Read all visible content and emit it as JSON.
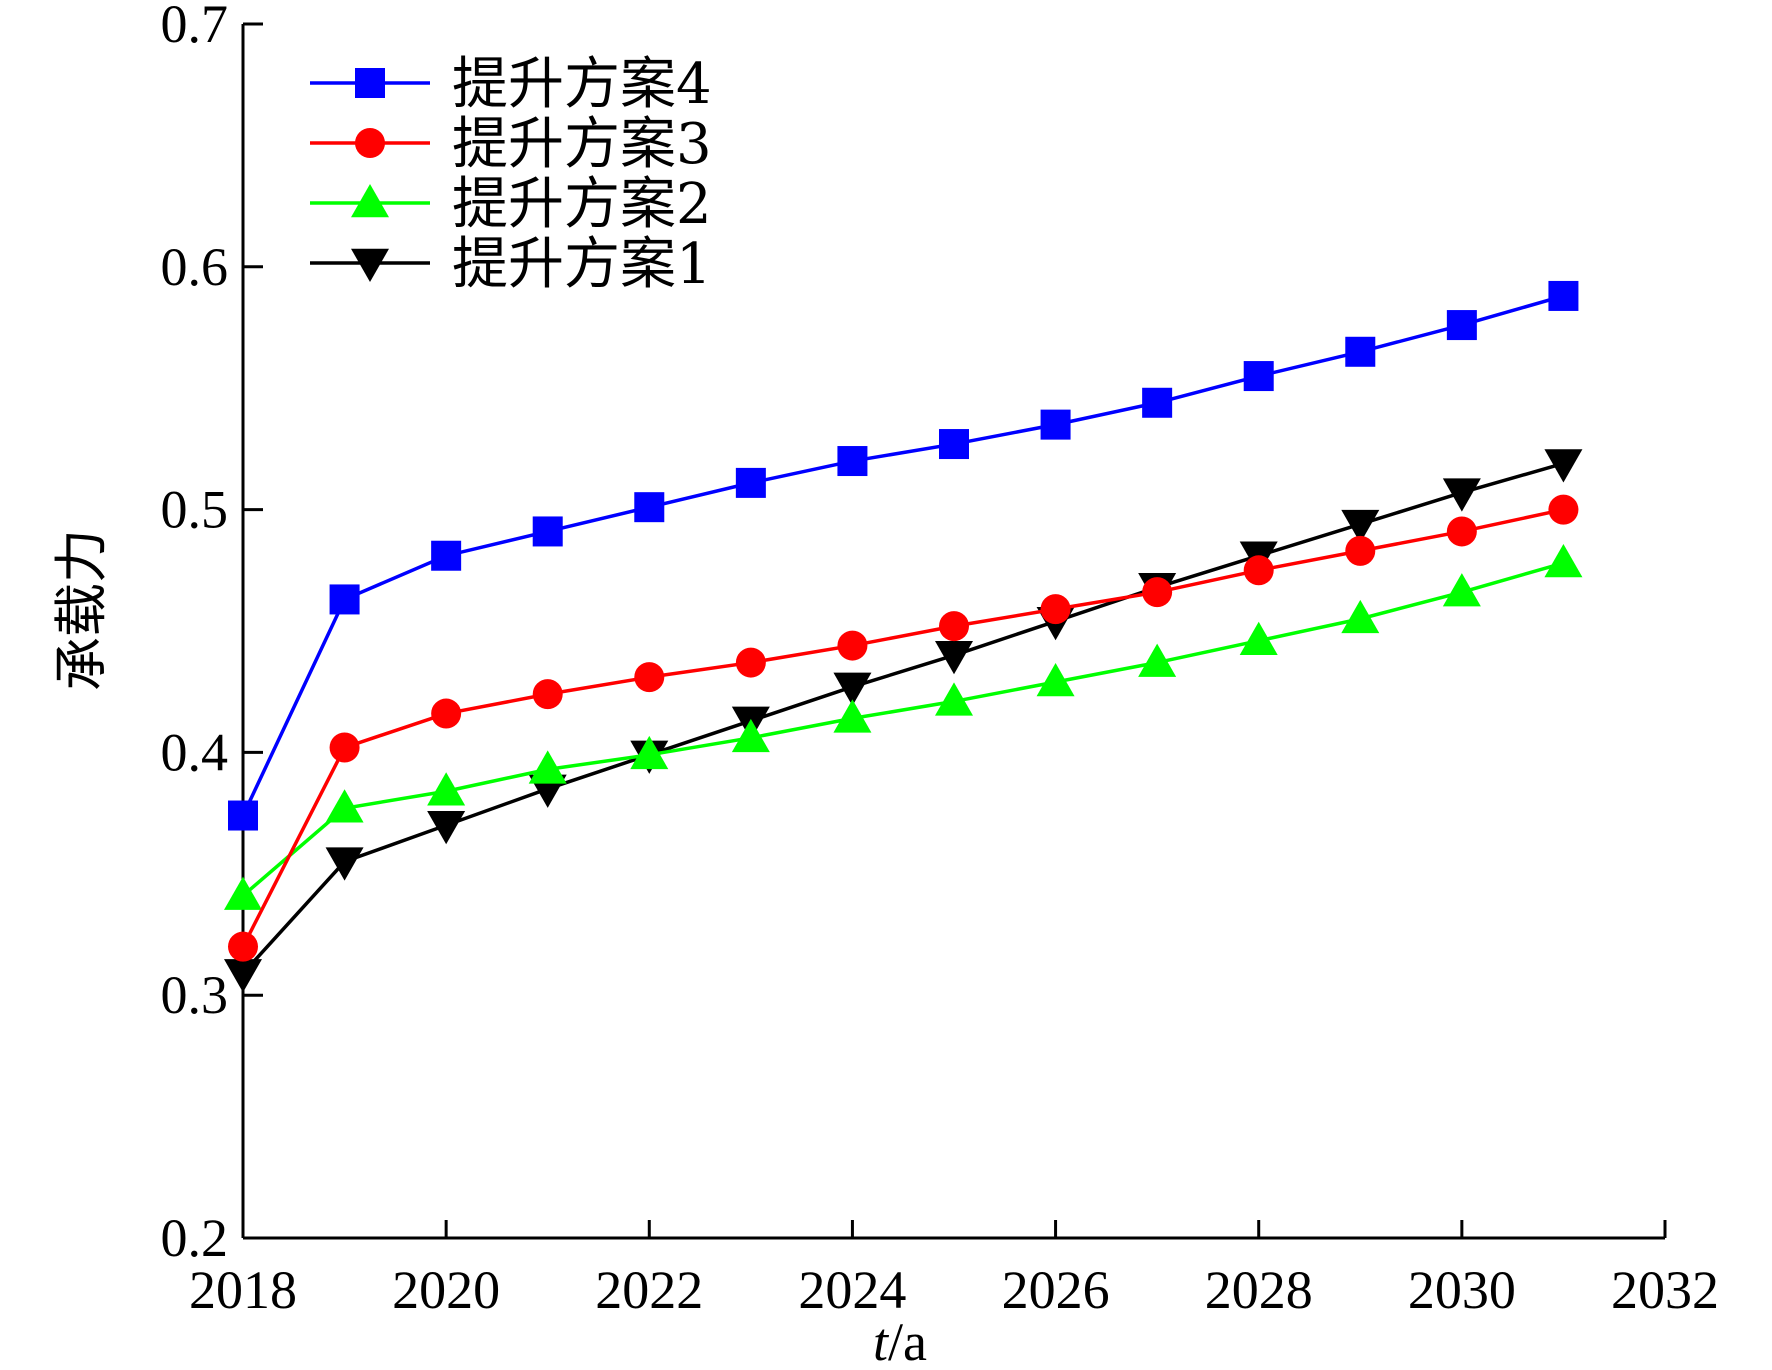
{
  "chart_data": {
    "type": "line",
    "title": "",
    "xlabel_italic": "t",
    "xlabel_rest": "/a",
    "ylabel": "承载力",
    "xlim": [
      2018,
      2032
    ],
    "ylim": [
      0.2,
      0.7
    ],
    "xticks": [
      2018,
      2020,
      2022,
      2024,
      2026,
      2028,
      2030,
      2032
    ],
    "yticks": [
      0.2,
      0.3,
      0.4,
      0.5,
      0.6,
      0.7
    ],
    "ytick_labels": [
      "0.2",
      "0.3",
      "0.4",
      "0.5",
      "0.6",
      "0.7"
    ],
    "grid": false,
    "legend_position": "top-left",
    "x": [
      2018,
      2019,
      2020,
      2021,
      2022,
      2023,
      2024,
      2025,
      2026,
      2027,
      2028,
      2029,
      2030,
      2031
    ],
    "series": [
      {
        "name": "提升方案4",
        "color": "#0000ff",
        "marker": "square",
        "values": [
          0.374,
          0.463,
          0.481,
          0.491,
          0.501,
          0.511,
          0.52,
          0.527,
          0.535,
          0.544,
          0.555,
          0.565,
          0.576,
          0.588
        ]
      },
      {
        "name": "提升方案3",
        "color": "#ff0000",
        "marker": "circle",
        "values": [
          0.32,
          0.402,
          0.416,
          0.424,
          0.431,
          0.437,
          0.444,
          0.452,
          0.459,
          0.466,
          0.475,
          0.483,
          0.491,
          0.5
        ]
      },
      {
        "name": "提升方案2",
        "color": "#00ff00",
        "marker": "triangle-up",
        "values": [
          0.341,
          0.377,
          0.384,
          0.393,
          0.399,
          0.406,
          0.414,
          0.421,
          0.429,
          0.437,
          0.446,
          0.455,
          0.466,
          0.478
        ]
      },
      {
        "name": "提升方案1",
        "color": "#000000",
        "marker": "triangle-down",
        "values": [
          0.309,
          0.355,
          0.37,
          0.385,
          0.399,
          0.413,
          0.427,
          0.44,
          0.454,
          0.468,
          0.481,
          0.494,
          0.507,
          0.519
        ]
      }
    ]
  }
}
